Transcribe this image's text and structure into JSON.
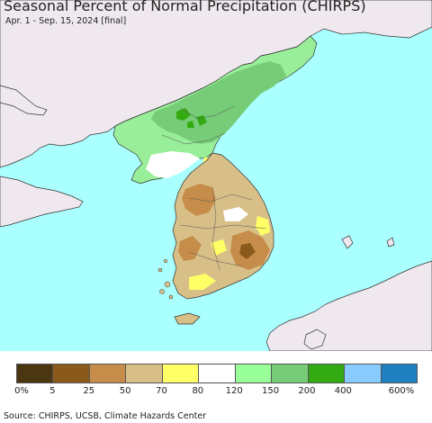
{
  "title": "Seasonal Percent of Normal Precipitation (CHIRPS)",
  "subtitle": "Apr. 1 - Sep. 15, 2024 [final]",
  "source": "Source: CHIRPS, UCSB, Climate Hazards Center",
  "colors": {
    "sea": "#aaffff",
    "land_outside": "#efe8ee",
    "border": "#333333"
  },
  "legend": {
    "colors": [
      "#4a3610",
      "#8a5a1c",
      "#c68d4a",
      "#d8bf88",
      "#ffff66",
      "#ffffff",
      "#99ff99",
      "#77cc77",
      "#33aa11",
      "#88ccff",
      "#1f7fbf"
    ],
    "labels": [
      "0%",
      "5",
      "25",
      "50",
      "70",
      "80",
      "120",
      "150",
      "200",
      "400",
      "600%"
    ]
  }
}
